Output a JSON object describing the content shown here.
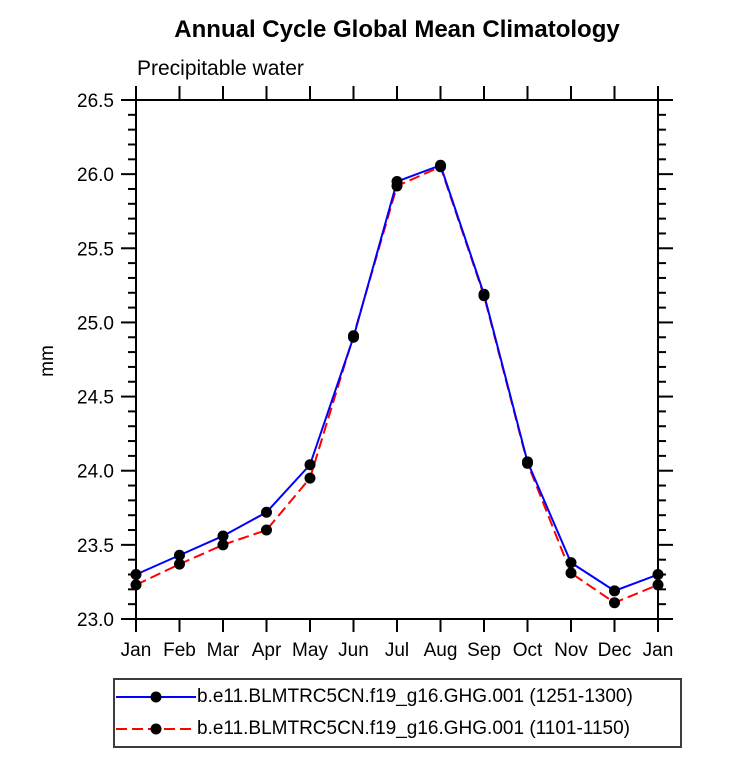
{
  "chart_data": {
    "type": "line",
    "title": "Annual Cycle Global Mean Climatology",
    "subtitle": "Precipitable water",
    "ylabel": "mm",
    "xlabel": "",
    "ylim": [
      23.0,
      26.5
    ],
    "y_major_ticks": [
      {
        "value": 23.0,
        "label": "23.0"
      },
      {
        "value": 23.5,
        "label": "23.5"
      },
      {
        "value": 24.0,
        "label": "24.0"
      },
      {
        "value": 24.5,
        "label": "24.5"
      },
      {
        "value": 25.0,
        "label": "25.0"
      },
      {
        "value": 25.5,
        "label": "25.5"
      },
      {
        "value": 26.0,
        "label": "26.0"
      },
      {
        "value": 26.5,
        "label": "26.5"
      }
    ],
    "y_minor_step": 0.1,
    "grid": false,
    "legend_position": "bottom",
    "categories": [
      "Jan",
      "Feb",
      "Mar",
      "Apr",
      "May",
      "Jun",
      "Jul",
      "Aug",
      "Sep",
      "Oct",
      "Nov",
      "Dec",
      "Jan"
    ],
    "marker": "filled-circle",
    "marker_color": "#000000",
    "axis_color": "#000000",
    "series": [
      {
        "id": "ghg-1251-1300",
        "name": "b.e11.BLMTRC5CN.f19_g16.GHG.001 (1251-1300)",
        "color": "#0000ff",
        "line_style": "solid",
        "values": [
          23.3,
          23.43,
          23.56,
          23.72,
          24.04,
          24.9,
          25.95,
          26.06,
          25.19,
          24.06,
          23.38,
          23.19,
          23.3
        ]
      },
      {
        "id": "ghg-1101-1150",
        "name": "b.e11.BLMTRC5CN.f19_g16.GHG.001 (1101-1150)",
        "color": "#ff0000",
        "line_style": "dashed",
        "values": [
          23.23,
          23.37,
          23.5,
          23.6,
          23.95,
          24.91,
          25.92,
          26.05,
          25.18,
          24.05,
          23.31,
          23.11,
          23.23
        ]
      }
    ]
  }
}
